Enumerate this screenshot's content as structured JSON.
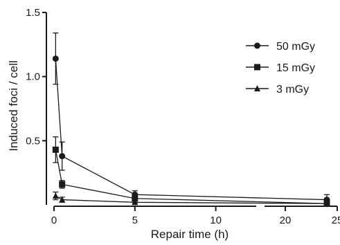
{
  "chart_data": {
    "type": "line",
    "title": "",
    "xlabel": "Repair time (h)",
    "ylabel": "Induced foci / cell",
    "x_axis": {
      "segments": [
        [
          0,
          12.5
        ],
        [
          18,
          25
        ]
      ],
      "ticks": [
        {
          "value": 0,
          "label": "0"
        },
        {
          "value": 5,
          "label": "5"
        },
        {
          "value": 10,
          "label": "10"
        },
        {
          "value": 20,
          "label": "20"
        },
        {
          "value": 25,
          "label": "25"
        }
      ]
    },
    "y_axis": {
      "range": [
        0,
        1.5
      ],
      "ticks": [
        {
          "value": 0.5,
          "label": "0.5"
        },
        {
          "value": 1.0,
          "label": "1.0"
        },
        {
          "value": 1.5,
          "label": "1.5"
        }
      ]
    },
    "grid": false,
    "legend_position": "top-right",
    "series": [
      {
        "name": "50 mGy",
        "marker": "circle",
        "color": "#1a1a1a",
        "points": [
          {
            "x": 0.1,
            "y": 1.14,
            "err": 0.2
          },
          {
            "x": 0.5,
            "y": 0.38,
            "err": 0.11
          },
          {
            "x": 5,
            "y": 0.08,
            "err": 0.03
          },
          {
            "x": 24,
            "y": 0.04,
            "err": 0.04
          }
        ]
      },
      {
        "name": "15 mGy",
        "marker": "square",
        "color": "#1a1a1a",
        "points": [
          {
            "x": 0.1,
            "y": 0.43,
            "err": 0.1
          },
          {
            "x": 0.5,
            "y": 0.16,
            "err": 0.03
          },
          {
            "x": 5,
            "y": 0.05,
            "err": 0.02
          },
          {
            "x": 24,
            "y": 0.01,
            "err": 0.015
          }
        ]
      },
      {
        "name": "3 mGy",
        "marker": "triangle",
        "color": "#1a1a1a",
        "points": [
          {
            "x": 0.1,
            "y": 0.07,
            "err": 0.03
          },
          {
            "x": 0.5,
            "y": 0.04,
            "err": 0.02
          },
          {
            "x": 5,
            "y": 0.02,
            "err": 0.01
          },
          {
            "x": 24,
            "y": 0.01,
            "err": 0.01
          }
        ]
      }
    ]
  }
}
